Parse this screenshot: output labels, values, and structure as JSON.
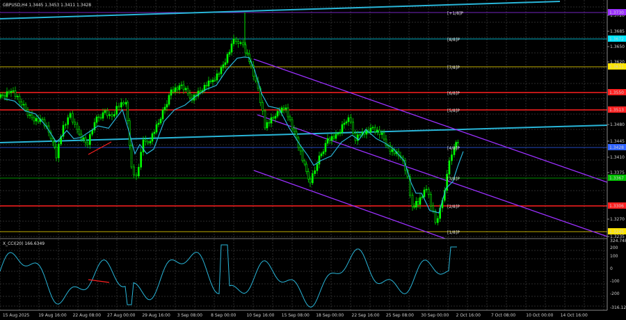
{
  "header": {
    "main_title": "GBPUSD,H4  1.3445 1.3453 1.3411 1.3428",
    "sub_title": "X_CCI(20) 166.6349"
  },
  "colors": {
    "background": "#000000",
    "candles": "#00ff00",
    "ma_line": "#29b6d9",
    "channel_purple": "#9b30ff",
    "trend_blue": "#29b6d9",
    "murrey_red": "#ff2020",
    "murrey_cyan": "#00e5ff",
    "murrey_yellow": "#ffe400",
    "murrey_green": "#00c000",
    "cci_line": "#29b6d9",
    "grid": "#2a2a2a"
  },
  "price_axis": {
    "labels": [
      "1.3720",
      "1.3685",
      "1.3650",
      "1.3620",
      "1.3480",
      "1.3445",
      "1.3410",
      "1.3375",
      "1.3270",
      "1.3235"
    ]
  },
  "murrey_levels": [
    {
      "tag": "[+1/8]P",
      "price": "1.3730",
      "color": "#9b30ff"
    },
    {
      "tag": "[8/8]P",
      "price": "1.3672",
      "color": "#00e5ff"
    },
    {
      "tag": "[7/8]P",
      "price": "1.3611",
      "color": "#ffe400"
    },
    {
      "tag": "[6/8]P",
      "price": "1.3550",
      "color": "#ff2020"
    },
    {
      "tag": "[5/8]P",
      "price": "1.3513",
      "color": "#ff2020"
    },
    {
      "tag": "[4/8]P",
      "price": "1.3428",
      "color": "#2f63ff"
    },
    {
      "tag": "[3/8]P",
      "price": "1.3367",
      "color": "#00c000"
    },
    {
      "tag": "[2/8]P",
      "price": "1.3306",
      "color": "#ff2020"
    },
    {
      "tag": "[1/8]P",
      "price": "1.3245",
      "color": "#ffe400"
    }
  ],
  "cci_axis": {
    "labels": [
      "324.7484",
      "200",
      "100",
      "0",
      "-100",
      "-200",
      "-316.1293"
    ]
  },
  "time_axis": {
    "labels": [
      "15 Aug 2025",
      "19 Aug 16:00",
      "22 Aug 08:00",
      "27 Aug 00:00",
      "29 Aug 16:00",
      "3 Sep 08:00",
      "8 Sep 00:00",
      "10 Sep 16:00",
      "15 Sep 08:00",
      "18 Sep 00:00",
      "22 Sep 16:00",
      "25 Sep 08:00",
      "30 Sep 00:00",
      "2 Oct 16:00",
      "7 Oct 08:00",
      "10 Oct 00:00",
      "14 Oct 16:00"
    ]
  }
}
